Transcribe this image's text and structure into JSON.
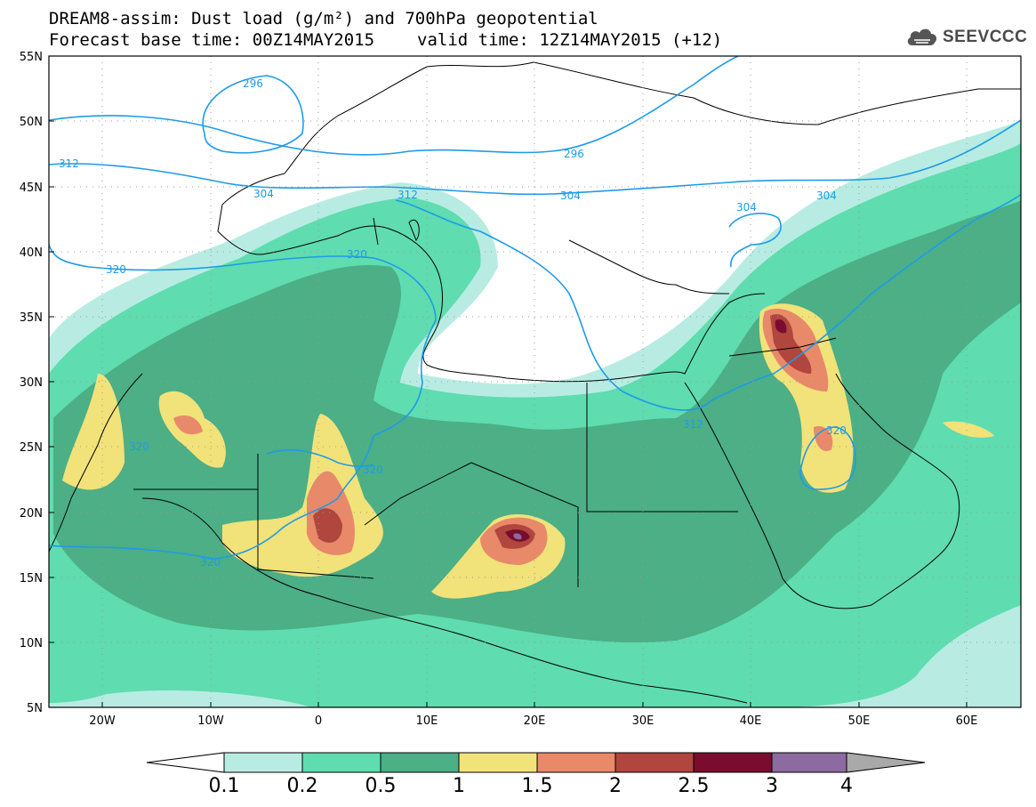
{
  "title": {
    "line1": "DREAM8-assim: Dust load (g/m²) and 700hPa geopotential",
    "line2_base": "Forecast base time: 00Z14MAY2015",
    "line2_valid": "valid time: 12Z14MAY2015 (+12)"
  },
  "logo": {
    "text": "SEEVCCC",
    "icon": "cloud-icon"
  },
  "map": {
    "lon_range": [
      -25,
      65
    ],
    "lat_range": [
      5,
      55
    ],
    "y_ticks": [
      "55N",
      "50N",
      "45N",
      "40N",
      "35N",
      "30N",
      "25N",
      "20N",
      "15N",
      "10N",
      "5N"
    ],
    "x_ticks": [
      "20W",
      "10W",
      "0",
      "10E",
      "20E",
      "30E",
      "40E",
      "50E",
      "60E"
    ],
    "contour_labels": [
      "296",
      "296",
      "312",
      "304",
      "312",
      "320",
      "320",
      "320",
      "320",
      "304",
      "304",
      "304",
      "312",
      "320",
      "320"
    ],
    "colors": {
      "dust_0_1": "#b8ece2",
      "dust_0_2": "#5fdcb0",
      "dust_0_5": "#4caf86",
      "dust_1": "#f2e27a",
      "dust_1_5": "#e8896a",
      "dust_2": "#b0463e",
      "dust_2_5": "#7a0d2f",
      "dust_3": "#8d6a9f",
      "contour": "#1e9be8"
    }
  },
  "colorbar": {
    "labels": [
      "0.1",
      "0.2",
      "0.5",
      "1",
      "1.5",
      "2",
      "2.5",
      "3",
      "4"
    ],
    "colors": [
      "#ffffff",
      "#b8ece2",
      "#5fdcb0",
      "#4caf86",
      "#f2e27a",
      "#e8896a",
      "#b0463e",
      "#7a0d2f",
      "#8d6a9f",
      "#a9a9a9"
    ]
  }
}
